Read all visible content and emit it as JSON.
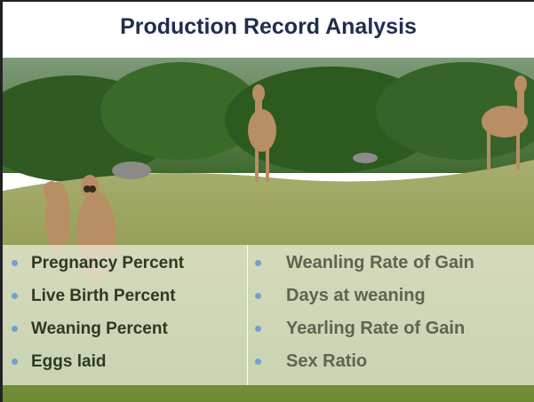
{
  "header": {
    "title": "Production Record Analysis"
  },
  "bullets": {
    "left": [
      "Pregnancy Percent",
      "Live Birth Percent",
      "Weaning Percent",
      "Eggs laid"
    ],
    "right": [
      "Weanling Rate of Gain",
      "Days at weaning",
      "Yearling Rate of Gain",
      "Sex Ratio"
    ]
  }
}
